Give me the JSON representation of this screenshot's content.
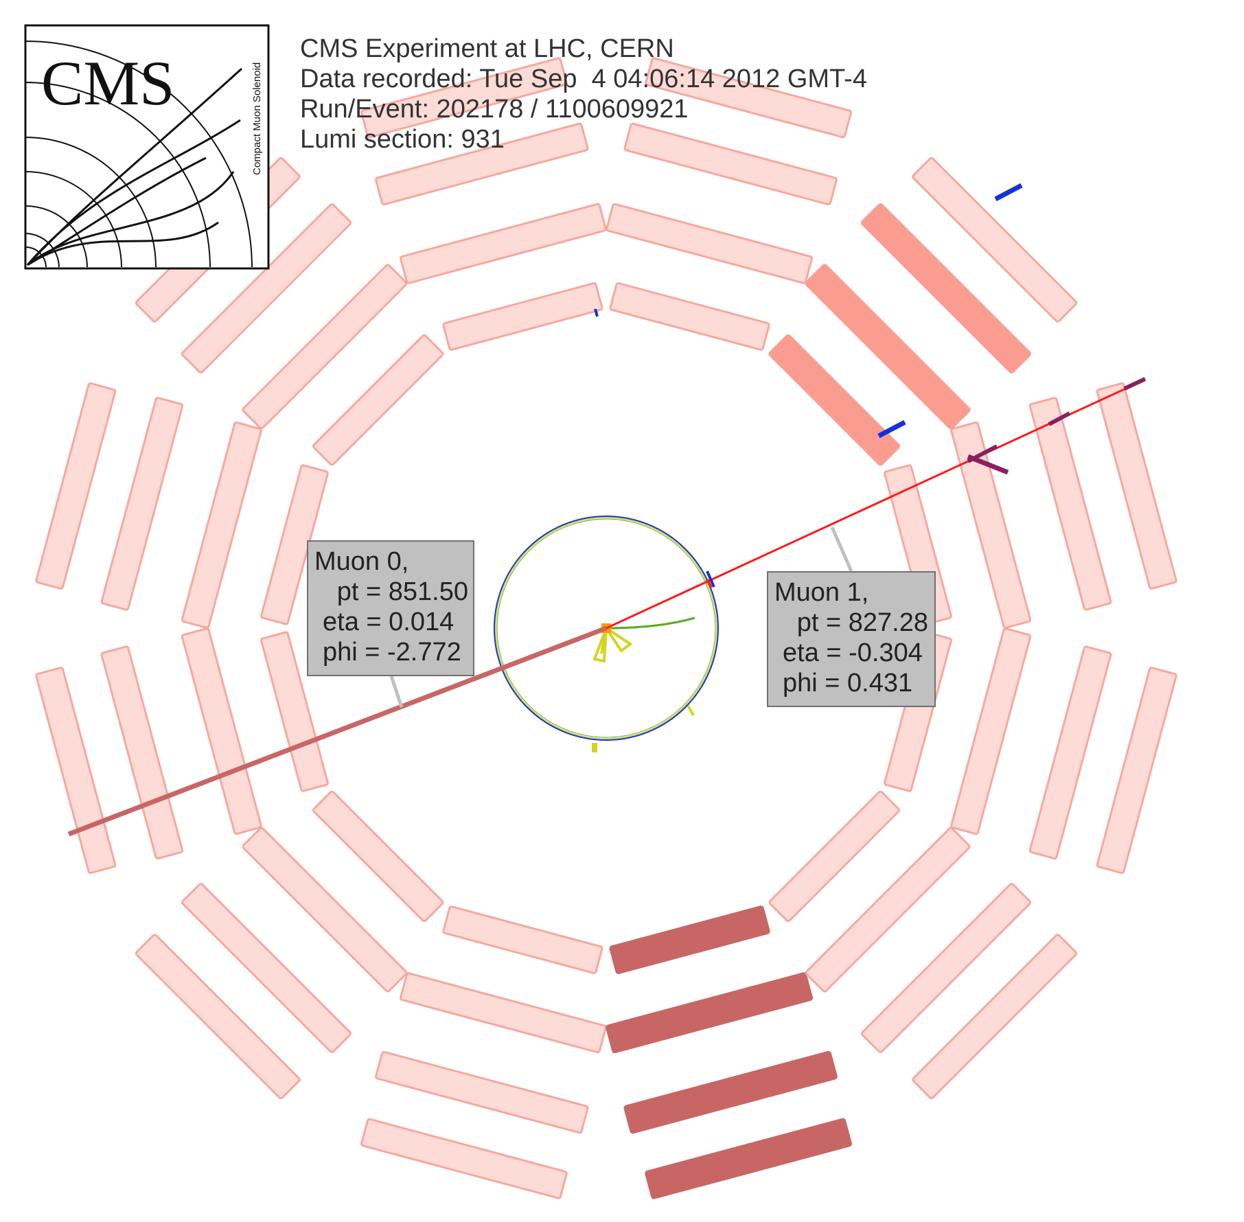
{
  "logo": {
    "title": "CMS",
    "subtitle": "Compact Muon Solenoid"
  },
  "event_info": {
    "line1": "CMS Experiment at LHC, CERN",
    "line2": "Data recorded: Tue Sep  4 04:06:14 2012 GMT-4",
    "line3": "Run/Event: 202178 / 1100609921",
    "line4": "Lumi section: 931"
  },
  "muons": [
    {
      "line1": "Muon 0,",
      "line2": "pt = 851.50",
      "line3": "eta = 0.014",
      "line4": "phi = -2.772"
    },
    {
      "line1": "Muon 1,",
      "line2": "pt = 827.28",
      "line3": "eta = -0.304",
      "line4": "phi = 0.431"
    }
  ],
  "colors": {
    "chamber_fill": "#fddbd6",
    "chamber_stroke": "#f5a8a0",
    "chamber_hit_medium": "#fa9c90",
    "chamber_hit_strong": "#c86666",
    "muon_track": "#ff1a1a",
    "muon_track_0": "#c86666",
    "label_bg": "#c0c0c0",
    "label_border": "#707070",
    "calo_yellow": "#d4d420",
    "tracker_green": "#5aaa20",
    "segment_blue": "#1530e0",
    "vertex_orange": "#ff9a00"
  }
}
